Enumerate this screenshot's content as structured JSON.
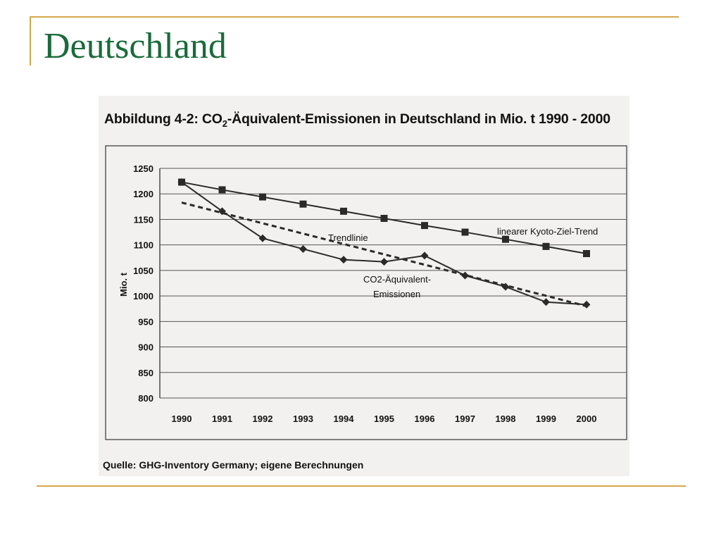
{
  "slide": {
    "title": "Deutschland",
    "accent_color": "#d4a84a",
    "title_color": "#1a6b3a"
  },
  "figure": {
    "title_prefix": "Abbildung 4-2: CO",
    "title_sub": "2",
    "title_suffix": "-Äquivalent-Emissionen in Deutschland in Mio. t 1990 - 2000",
    "source": "Quelle: GHG-Inventory Germany; eigene Berechnungen"
  },
  "chart_data": {
    "type": "line",
    "ylabel": "Mio. t",
    "ylim": [
      800,
      1250
    ],
    "yticks": [
      800,
      850,
      900,
      950,
      1000,
      1050,
      1100,
      1150,
      1200,
      1250
    ],
    "grid": true,
    "x": [
      "1990",
      "1991",
      "1992",
      "1993",
      "1994",
      "1995",
      "1996",
      "1997",
      "1998",
      "1999",
      "2000"
    ],
    "series": [
      {
        "name": "linearer Kyoto-Ziel-Trend",
        "marker": "square",
        "style": "solid",
        "values": [
          1223,
          1208,
          1194,
          1180,
          1166,
          1152,
          1138,
          1125,
          1111,
          1097,
          1083
        ]
      },
      {
        "name": "CO2-Äquivalent-Emissionen",
        "marker": "diamond",
        "style": "solid",
        "values": [
          1223,
          1166,
          1113,
          1092,
          1071,
          1067,
          1079,
          1040,
          1018,
          988,
          983
        ]
      },
      {
        "name": "Trendlinie",
        "marker": "none",
        "style": "dashed",
        "x": [
          "1990",
          "2000"
        ],
        "values": [
          1183,
          980
        ]
      }
    ],
    "annotations": [
      {
        "text": "Trendlinie"
      },
      {
        "text": "linearer Kyoto-Ziel-Trend"
      },
      {
        "text": "CO2-Äquivalent-"
      },
      {
        "text": "Emissionen"
      }
    ]
  }
}
